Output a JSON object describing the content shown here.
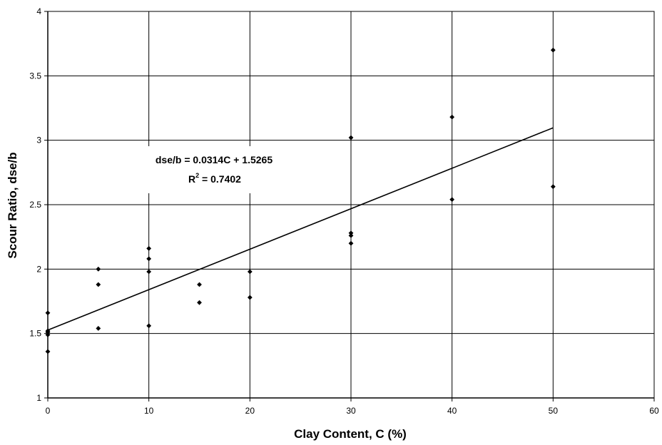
{
  "chart_data": {
    "type": "scatter",
    "xlabel": "Clay Content, C (%)",
    "ylabel": "Scour Ratio, dse/b",
    "xlim": [
      0,
      60
    ],
    "ylim": [
      1,
      4
    ],
    "x_ticks": [
      "0",
      "10",
      "20",
      "30",
      "40",
      "50",
      "60"
    ],
    "y_ticks": [
      "1",
      "1.5",
      "2",
      "2.5",
      "3",
      "3.5",
      "4"
    ],
    "grid": true,
    "legend": "none",
    "marker_color": "#000000",
    "points": [
      {
        "x": 0,
        "y": 1.66
      },
      {
        "x": 0,
        "y": 1.52
      },
      {
        "x": 0,
        "y": 1.51
      },
      {
        "x": 0,
        "y": 1.49
      },
      {
        "x": 0,
        "y": 1.36
      },
      {
        "x": 5,
        "y": 2.0
      },
      {
        "x": 5,
        "y": 1.88
      },
      {
        "x": 5,
        "y": 1.54
      },
      {
        "x": 10,
        "y": 2.16
      },
      {
        "x": 10,
        "y": 2.08
      },
      {
        "x": 10,
        "y": 1.98
      },
      {
        "x": 10,
        "y": 1.56
      },
      {
        "x": 15,
        "y": 1.88
      },
      {
        "x": 15,
        "y": 1.74
      },
      {
        "x": 20,
        "y": 1.98
      },
      {
        "x": 20,
        "y": 1.78
      },
      {
        "x": 30,
        "y": 3.02
      },
      {
        "x": 30,
        "y": 2.28
      },
      {
        "x": 30,
        "y": 2.26
      },
      {
        "x": 30,
        "y": 2.2
      },
      {
        "x": 40,
        "y": 3.18
      },
      {
        "x": 40,
        "y": 2.54
      },
      {
        "x": 50,
        "y": 3.7
      },
      {
        "x": 50,
        "y": 2.64
      }
    ],
    "trendline": {
      "slope": 0.0314,
      "intercept": 1.5265,
      "x_range": [
        0,
        50
      ],
      "equation_text": "dse/b = 0.0314C + 1.5265",
      "r2_prefix": "R",
      "r2_sup": "2",
      "r2_value": " = 0.7402"
    }
  }
}
